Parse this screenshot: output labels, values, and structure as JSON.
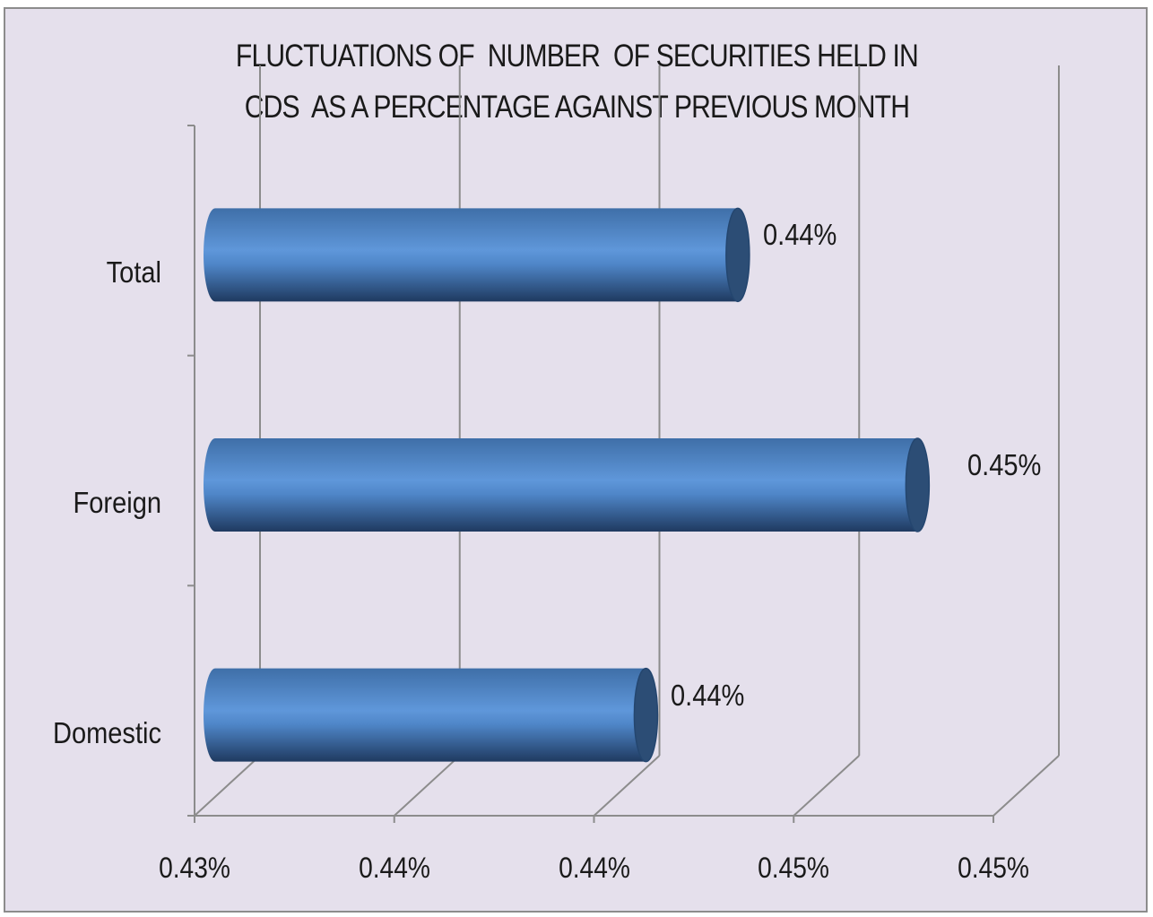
{
  "chart_data": {
    "type": "bar",
    "orientation": "horizontal",
    "style": "3d-cylinder",
    "title": "FLUCTUATIONS OF  NUMBER  OF SECURITIES HELD IN\nCDS  AS A PERCENTAGE AGAINST PREVIOUS MONTH",
    "xlabel": "",
    "ylabel": "",
    "categories": [
      "Domestic",
      "Foreign",
      "Total"
    ],
    "values": [
      0.4413,
      0.4481,
      0.4436
    ],
    "data_labels": [
      "0.44%",
      "0.45%",
      "0.44%"
    ],
    "xlim": [
      0.43,
      0.45
    ],
    "x_tick_labels": [
      "0.43%",
      "0.44%",
      "0.44%",
      "0.45%",
      "0.45%"
    ],
    "grid": true,
    "legend": "none",
    "colors": {
      "bar": "#4f81bd",
      "bar_light": "#8db3e2",
      "bar_dark": "#2c4d75",
      "background": "#e5e0ec",
      "gridline": "#8c8c8c"
    }
  }
}
